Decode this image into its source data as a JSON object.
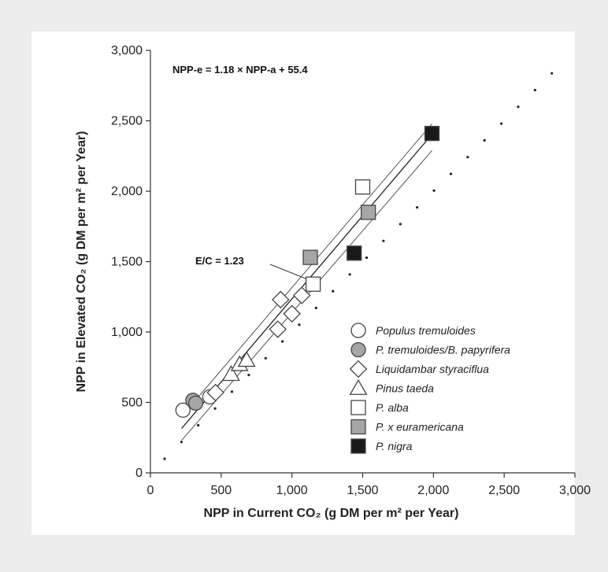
{
  "chart_data": {
    "type": "scatter",
    "xlabel": "NPP in Current CO₂ (g DM per m² per Year)",
    "ylabel": "NPP in Elevated CO₂ (g DM per m² per Year)",
    "xlim": [
      0,
      3000
    ],
    "ylim": [
      0,
      3000
    ],
    "xticks": [
      "0",
      "500",
      "1,000",
      "1,500",
      "2,000",
      "2,500",
      "3,000"
    ],
    "yticks": [
      "0",
      "500",
      "1,000",
      "1,500",
      "2,000",
      "2,500",
      "3,000"
    ],
    "equation_label": "NPP-e = 1.18 × NPP-a + 55.4",
    "ratio_label": "E/C = 1.23",
    "regression": {
      "slope": 1.18,
      "intercept": 55.4,
      "x_range": [
        220,
        1990
      ]
    },
    "one_to_one_line": {
      "x_range": [
        100,
        2950
      ]
    },
    "legend_position": "bottom-right",
    "series": [
      {
        "name": "Populus tremuloides",
        "marker": "circle",
        "fill": "#ffffff",
        "points": [
          [
            230,
            445
          ],
          [
            420,
            540
          ]
        ]
      },
      {
        "name": "P. tremuloides/B. papyrifera",
        "marker": "circle",
        "fill": "#a6a6a6",
        "points": [
          [
            300,
            515
          ],
          [
            320,
            495
          ]
        ]
      },
      {
        "name": "Liquidambar styraciflua",
        "marker": "diamond",
        "fill": "#ffffff",
        "points": [
          [
            460,
            570
          ],
          [
            900,
            1020
          ],
          [
            920,
            1230
          ],
          [
            1000,
            1130
          ],
          [
            1070,
            1260
          ]
        ]
      },
      {
        "name": "Pinus taeda",
        "marker": "triangle",
        "fill": "#ffffff",
        "points": [
          [
            570,
            700
          ],
          [
            630,
            770
          ],
          [
            680,
            800
          ]
        ]
      },
      {
        "name": "P. alba",
        "marker": "square",
        "fill": "#ffffff",
        "points": [
          [
            1150,
            1340
          ],
          [
            1500,
            2030
          ]
        ]
      },
      {
        "name": "P. x euramericana",
        "marker": "square",
        "fill": "#a6a6a6",
        "points": [
          [
            1130,
            1530
          ],
          [
            1540,
            1850
          ]
        ]
      },
      {
        "name": "P. nigra",
        "marker": "square",
        "fill": "#1a1a1a",
        "points": [
          [
            1440,
            1560
          ],
          [
            1990,
            2410
          ]
        ]
      }
    ]
  }
}
